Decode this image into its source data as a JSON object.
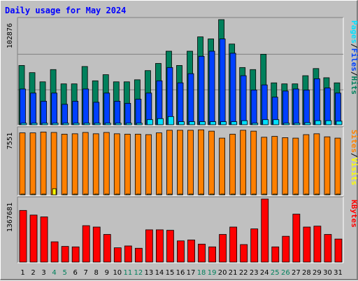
{
  "title": "Daily usage for May 2024",
  "colors": {
    "hits": "#00805c",
    "files": "#0040ff",
    "pages": "#00e0ff",
    "visits": "#ffff00",
    "sites": "#ff8000",
    "kbytes": "#ff0000",
    "day_normal": "#000000",
    "day_weekend": "#00805c"
  },
  "chart_data": [
    {
      "type": "bar",
      "panel": "top",
      "ylabel": "102876",
      "legend": [
        "Pages",
        "Files",
        "Hits"
      ],
      "categories": [
        "1",
        "2",
        "3",
        "4",
        "5",
        "6",
        "7",
        "8",
        "9",
        "10",
        "11",
        "12",
        "13",
        "14",
        "15",
        "16",
        "17",
        "18",
        "19",
        "20",
        "21",
        "22",
        "23",
        "24",
        "25",
        "26",
        "27",
        "28",
        "29",
        "30",
        "31"
      ],
      "ylim": [
        0,
        102876
      ],
      "series": [
        {
          "name": "Hits",
          "values": [
            58000,
            51000,
            42000,
            54000,
            40000,
            40000,
            57000,
            43000,
            49000,
            42000,
            42000,
            44000,
            53000,
            60000,
            72000,
            58000,
            72000,
            86000,
            84000,
            102876,
            79000,
            56000,
            54000,
            69000,
            41000,
            40000,
            40000,
            48000,
            55000,
            46000,
            41000
          ]
        },
        {
          "name": "Files",
          "values": [
            35000,
            31000,
            23000,
            31000,
            20000,
            23000,
            35000,
            22000,
            31000,
            23000,
            21000,
            25000,
            31000,
            43000,
            56000,
            41000,
            50000,
            67000,
            72000,
            84000,
            70000,
            48000,
            34000,
            39000,
            27000,
            33000,
            35000,
            34000,
            45000,
            36000,
            31000
          ]
        },
        {
          "name": "Pages",
          "values": [
            1500,
            1500,
            1500,
            1500,
            1500,
            1500,
            1500,
            1500,
            1500,
            1500,
            1500,
            1500,
            5000,
            6000,
            8000,
            3000,
            3000,
            3000,
            3000,
            3000,
            3000,
            4000,
            1500,
            5000,
            5000,
            1500,
            1500,
            2000,
            4000,
            4000,
            3500
          ]
        }
      ]
    },
    {
      "type": "bar",
      "panel": "middle",
      "ylabel": "7551",
      "legend": [
        "Sites",
        "Visits"
      ],
      "categories": [
        "1",
        "2",
        "3",
        "4",
        "5",
        "6",
        "7",
        "8",
        "9",
        "10",
        "11",
        "12",
        "13",
        "14",
        "15",
        "16",
        "17",
        "18",
        "19",
        "20",
        "21",
        "22",
        "23",
        "24",
        "25",
        "26",
        "27",
        "28",
        "29",
        "30",
        "31"
      ],
      "ylim": [
        0,
        7551
      ],
      "series": [
        {
          "name": "Visits",
          "values": [
            80,
            80,
            80,
            700,
            80,
            80,
            80,
            80,
            80,
            80,
            80,
            80,
            80,
            80,
            80,
            80,
            80,
            80,
            80,
            80,
            80,
            80,
            80,
            80,
            80,
            80,
            80,
            80,
            80,
            80,
            80
          ]
        },
        {
          "name": "Sites",
          "values": [
            7100,
            7100,
            7200,
            7150,
            6950,
            7000,
            7150,
            7000,
            7150,
            7000,
            6950,
            6950,
            6900,
            7100,
            7400,
            7400,
            7400,
            7450,
            7300,
            6500,
            6950,
            7400,
            7300,
            6600,
            6700,
            6550,
            6500,
            6900,
            7000,
            6650,
            6500
          ]
        }
      ]
    },
    {
      "type": "bar",
      "panel": "bottom",
      "ylabel": "1367681",
      "legend": [
        "KBytes"
      ],
      "categories": [
        "1",
        "2",
        "3",
        "4",
        "5",
        "6",
        "7",
        "8",
        "9",
        "10",
        "11",
        "12",
        "13",
        "14",
        "15",
        "16",
        "17",
        "18",
        "19",
        "20",
        "21",
        "22",
        "23",
        "24",
        "25",
        "26",
        "27",
        "28",
        "29",
        "30",
        "31"
      ],
      "ylim": [
        0,
        1367681
      ],
      "series": [
        {
          "name": "KBytes",
          "values": [
            1120000,
            1020000,
            980000,
            440000,
            340000,
            330000,
            790000,
            760000,
            600000,
            310000,
            350000,
            300000,
            700000,
            700000,
            690000,
            460000,
            480000,
            390000,
            330000,
            600000,
            760000,
            380000,
            720000,
            1367681,
            330000,
            560000,
            1040000,
            760000,
            780000,
            600000,
            500000
          ]
        }
      ]
    }
  ],
  "days": [
    "1",
    "2",
    "3",
    "4",
    "5",
    "6",
    "7",
    "8",
    "9",
    "10",
    "11",
    "12",
    "13",
    "14",
    "15",
    "16",
    "17",
    "18",
    "19",
    "20",
    "21",
    "22",
    "23",
    "24",
    "25",
    "26",
    "27",
    "28",
    "29",
    "30",
    "31"
  ],
  "weekend_days": [
    "4",
    "5",
    "11",
    "12",
    "18",
    "19",
    "25",
    "26"
  ]
}
